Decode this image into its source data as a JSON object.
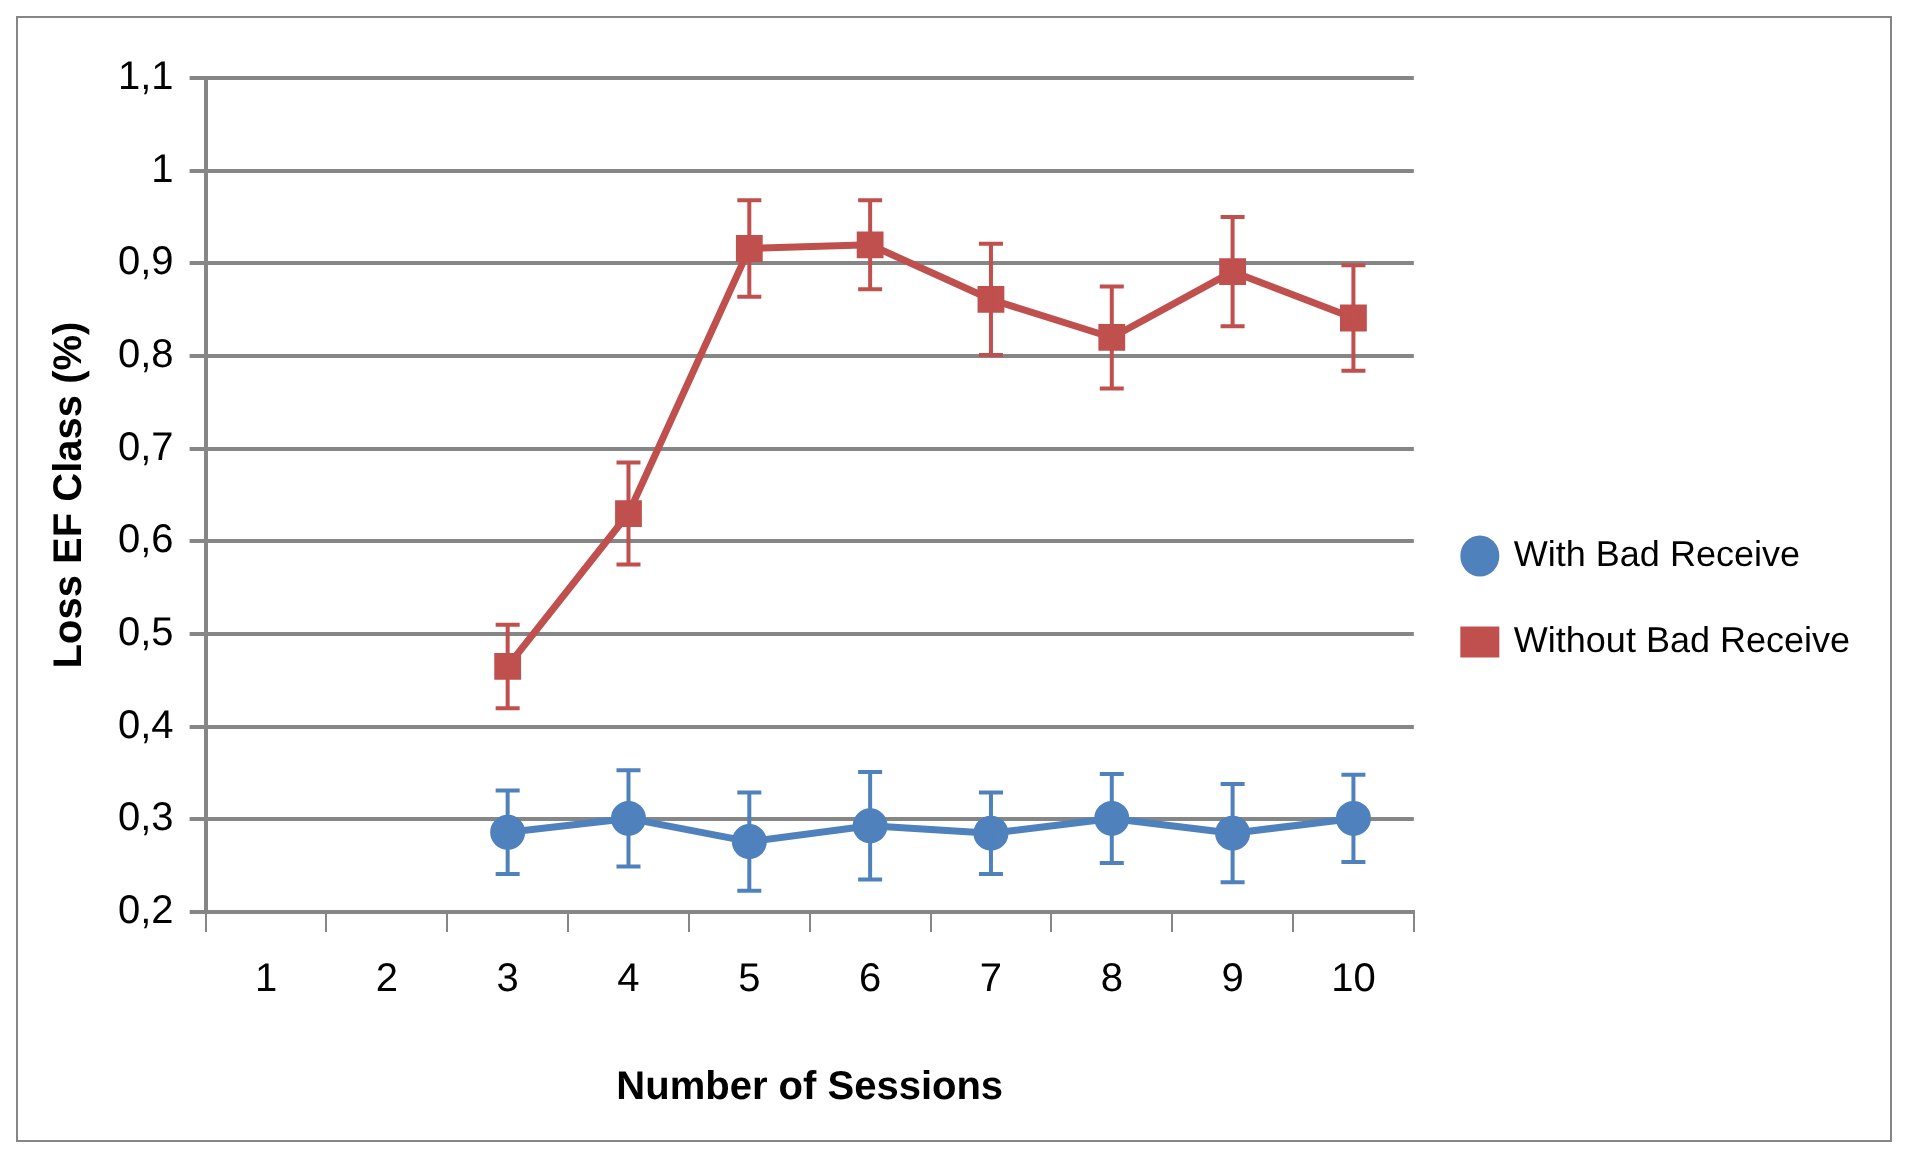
{
  "chart_data": {
    "type": "line",
    "xlabel": "Number of Sessions",
    "ylabel": "Loss EF Class (%)",
    "categories": [
      "1",
      "2",
      "3",
      "4",
      "5",
      "6",
      "7",
      "8",
      "9",
      "10"
    ],
    "series": [
      {
        "name": "With Bad Receive",
        "color": "#4f81bd",
        "marker": "circle",
        "values": [
          null,
          null,
          0.286,
          0.301,
          0.276,
          0.293,
          0.285,
          0.301,
          0.285,
          0.301
        ],
        "errors": [
          null,
          null,
          0.045,
          0.052,
          0.053,
          0.058,
          0.044,
          0.048,
          0.053,
          0.047
        ]
      },
      {
        "name": "Without Bad Receive",
        "color": "#c0504d",
        "marker": "square",
        "values": [
          null,
          null,
          0.465,
          0.63,
          0.916,
          0.92,
          0.861,
          0.82,
          0.891,
          0.841
        ],
        "errors": [
          null,
          null,
          0.045,
          0.055,
          0.052,
          0.048,
          0.06,
          0.055,
          0.059,
          0.057
        ]
      }
    ],
    "ylim": [
      0.2,
      1.1
    ],
    "yticks": [
      {
        "value": 0.2,
        "label": "0,2"
      },
      {
        "value": 0.3,
        "label": "0,3"
      },
      {
        "value": 0.4,
        "label": "0,4"
      },
      {
        "value": 0.5,
        "label": "0,5"
      },
      {
        "value": 0.6,
        "label": "0,6"
      },
      {
        "value": 0.7,
        "label": "0,7"
      },
      {
        "value": 0.8,
        "label": "0,8"
      },
      {
        "value": 0.9,
        "label": "0,9"
      },
      {
        "value": 1,
        "label": "1"
      },
      {
        "value": 1.1,
        "label": "1,1"
      }
    ],
    "grid": "y",
    "legend": "right",
    "line_style": "solid"
  }
}
